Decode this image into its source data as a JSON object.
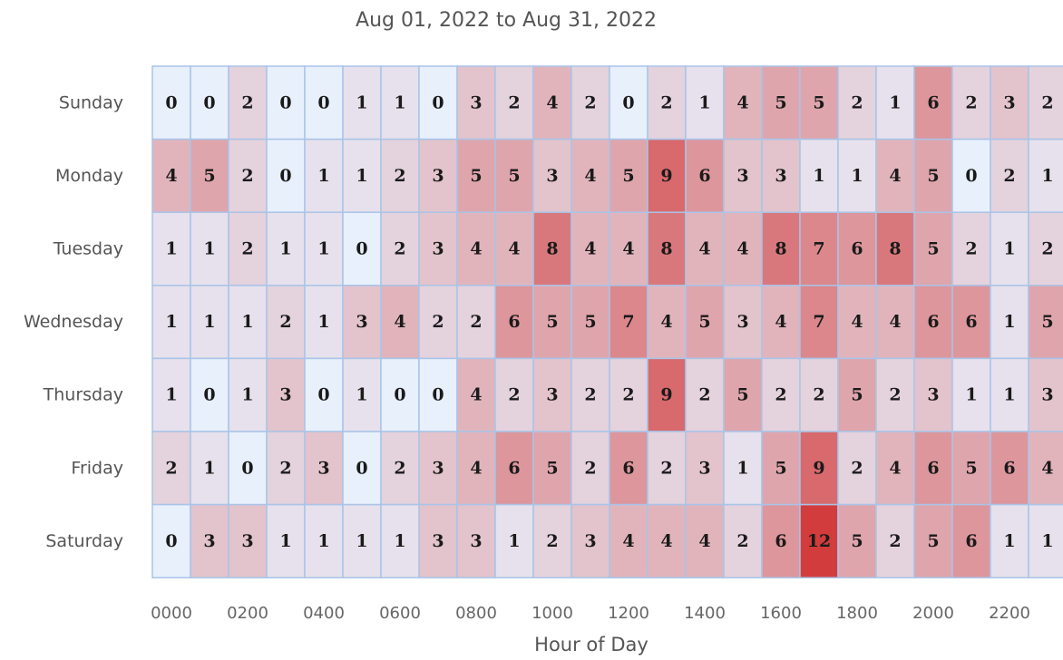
{
  "chart_data": {
    "type": "heatmap",
    "title": "Aug 01, 2022 to Aug 31, 2022",
    "xlabel": "Hour of Day",
    "ylabel": "",
    "x_tick_labels": [
      "0000",
      "0200",
      "0400",
      "0600",
      "0800",
      "1000",
      "1200",
      "1400",
      "1600",
      "1800",
      "2000",
      "2200"
    ],
    "x_hours": [
      0,
      1,
      2,
      3,
      4,
      5,
      6,
      7,
      8,
      9,
      10,
      11,
      12,
      13,
      14,
      15,
      16,
      17,
      18,
      19,
      20,
      21,
      22,
      23
    ],
    "y_categories": [
      "Sunday",
      "Monday",
      "Tuesday",
      "Wednesday",
      "Thursday",
      "Friday",
      "Saturday"
    ],
    "values": [
      [
        0,
        0,
        2,
        0,
        0,
        1,
        1,
        0,
        3,
        2,
        4,
        2,
        0,
        2,
        1,
        4,
        5,
        5,
        2,
        1,
        6,
        2,
        3,
        2
      ],
      [
        4,
        5,
        2,
        0,
        1,
        1,
        2,
        3,
        5,
        5,
        3,
        4,
        5,
        9,
        6,
        3,
        3,
        1,
        1,
        4,
        5,
        0,
        2,
        1
      ],
      [
        1,
        1,
        2,
        1,
        1,
        0,
        2,
        3,
        4,
        4,
        8,
        4,
        4,
        8,
        4,
        4,
        8,
        7,
        6,
        8,
        5,
        2,
        1,
        2
      ],
      [
        1,
        1,
        1,
        2,
        1,
        3,
        4,
        2,
        2,
        6,
        5,
        5,
        7,
        4,
        5,
        3,
        4,
        7,
        4,
        4,
        6,
        6,
        1,
        5
      ],
      [
        1,
        0,
        1,
        3,
        0,
        1,
        0,
        0,
        4,
        2,
        3,
        2,
        2,
        9,
        2,
        5,
        2,
        2,
        5,
        2,
        3,
        1,
        1,
        3
      ],
      [
        2,
        1,
        0,
        2,
        3,
        0,
        2,
        3,
        4,
        6,
        5,
        2,
        6,
        2,
        3,
        1,
        5,
        9,
        2,
        4,
        6,
        5,
        6,
        4
      ],
      [
        0,
        3,
        3,
        1,
        1,
        1,
        1,
        3,
        3,
        1,
        2,
        3,
        4,
        4,
        4,
        2,
        6,
        12,
        5,
        2,
        5,
        6,
        1,
        1
      ]
    ],
    "value_range": [
      0,
      12
    ],
    "color_low": "#e8f0fc",
    "color_high": "#d23c3c",
    "cell_border_color": "#a9c4e8",
    "grid": true,
    "legend": "none"
  }
}
